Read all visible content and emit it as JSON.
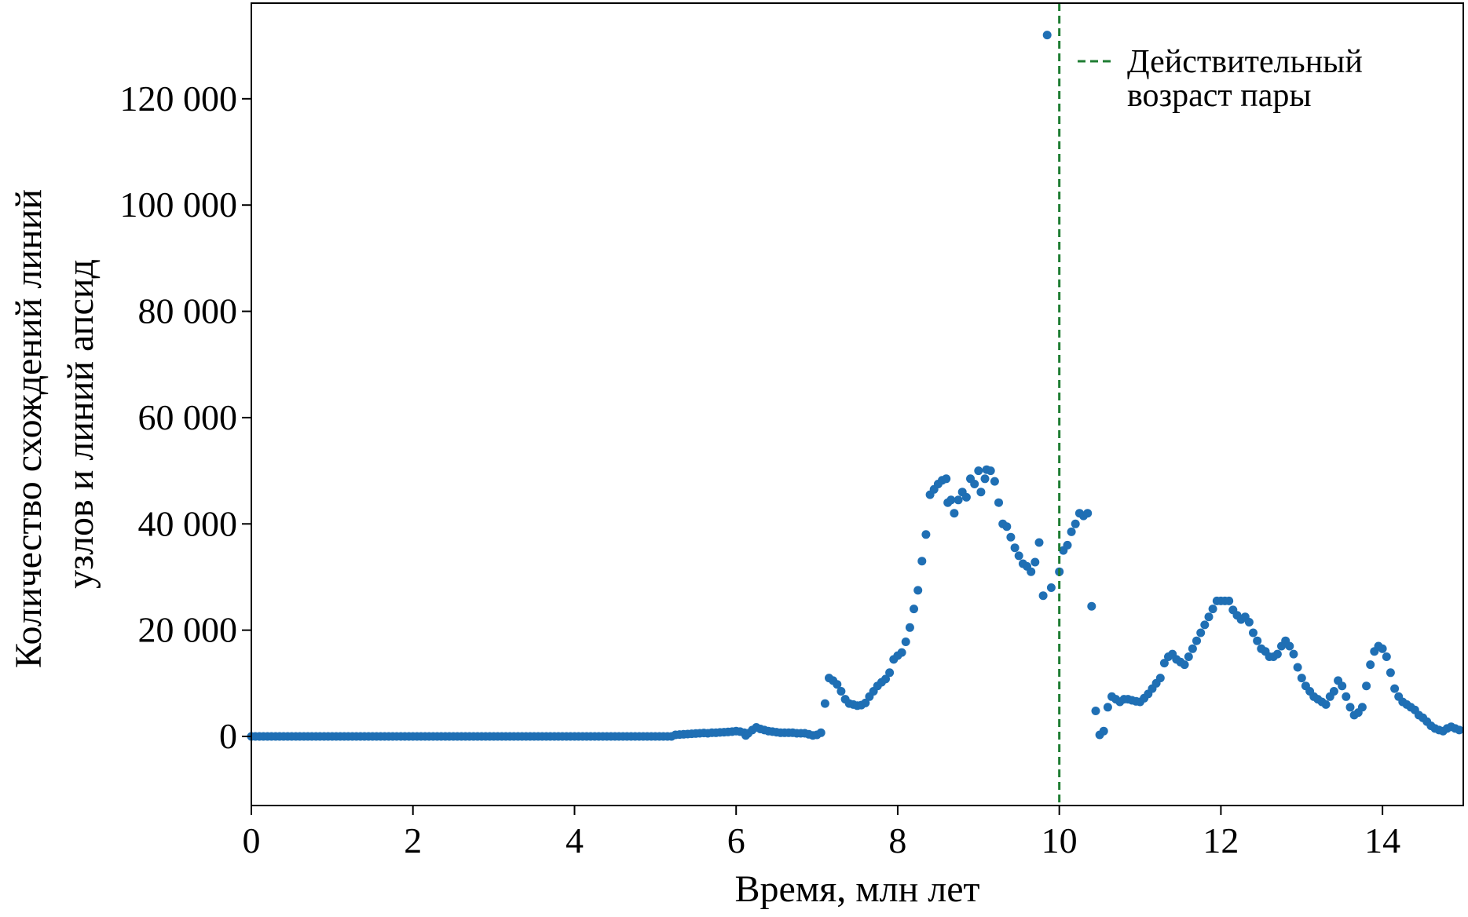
{
  "chart_data": {
    "type": "scatter",
    "title": "",
    "xlabel": "Время, млн лет",
    "ylabel_lines": [
      "Количество схождений линий",
      "узлов и линий апсид"
    ],
    "xlim": [
      0,
      15
    ],
    "ylim": [
      -13000,
      138000
    ],
    "x_ticks": [
      0,
      2,
      4,
      6,
      8,
      10,
      12,
      14
    ],
    "x_tick_labels": [
      "0",
      "2",
      "4",
      "6",
      "8",
      "10",
      "12",
      "14"
    ],
    "y_ticks": [
      0,
      20000,
      40000,
      60000,
      80000,
      100000,
      120000
    ],
    "y_tick_labels": [
      "0",
      "20 000",
      "40 000",
      "60 000",
      "80 000",
      "100 000",
      "120 000"
    ],
    "grid": false,
    "legend_position": "top-right",
    "marker_color": "#1f6fb4",
    "reference_line": {
      "x": 10,
      "color": "#1e7d32",
      "style": "dashed",
      "label_lines": [
        "Действительный",
        "возраст пары"
      ]
    },
    "flat_series": {
      "x_start": 0.0,
      "x_end": 5.2,
      "step": 0.05,
      "y": 0
    },
    "points": [
      [
        5.25,
        300
      ],
      [
        5.3,
        350
      ],
      [
        5.35,
        400
      ],
      [
        5.4,
        450
      ],
      [
        5.45,
        500
      ],
      [
        5.5,
        550
      ],
      [
        5.55,
        600
      ],
      [
        5.6,
        650
      ],
      [
        5.65,
        600
      ],
      [
        5.7,
        700
      ],
      [
        5.75,
        700
      ],
      [
        5.8,
        750
      ],
      [
        5.85,
        800
      ],
      [
        5.9,
        850
      ],
      [
        5.95,
        900
      ],
      [
        6.0,
        1000
      ],
      [
        6.05,
        900
      ],
      [
        6.1,
        700
      ],
      [
        6.12,
        200
      ],
      [
        6.15,
        600
      ],
      [
        6.2,
        1200
      ],
      [
        6.25,
        1700
      ],
      [
        6.3,
        1400
      ],
      [
        6.35,
        1200
      ],
      [
        6.4,
        1000
      ],
      [
        6.45,
        900
      ],
      [
        6.5,
        800
      ],
      [
        6.55,
        700
      ],
      [
        6.6,
        700
      ],
      [
        6.65,
        700
      ],
      [
        6.7,
        700
      ],
      [
        6.75,
        600
      ],
      [
        6.8,
        600
      ],
      [
        6.85,
        600
      ],
      [
        6.9,
        400
      ],
      [
        6.95,
        200
      ],
      [
        7.0,
        300
      ],
      [
        7.05,
        700
      ],
      [
        7.1,
        6200
      ],
      [
        7.15,
        11000
      ],
      [
        7.2,
        10500
      ],
      [
        7.25,
        9800
      ],
      [
        7.3,
        8500
      ],
      [
        7.35,
        7000
      ],
      [
        7.4,
        6200
      ],
      [
        7.45,
        6000
      ],
      [
        7.5,
        5800
      ],
      [
        7.55,
        5900
      ],
      [
        7.6,
        6300
      ],
      [
        7.65,
        7500
      ],
      [
        7.7,
        8500
      ],
      [
        7.75,
        9500
      ],
      [
        7.8,
        10200
      ],
      [
        7.85,
        10800
      ],
      [
        7.9,
        12000
      ],
      [
        7.95,
        14500
      ],
      [
        8.0,
        15200
      ],
      [
        8.05,
        15800
      ],
      [
        8.1,
        17800
      ],
      [
        8.15,
        20500
      ],
      [
        8.2,
        24000
      ],
      [
        8.25,
        27500
      ],
      [
        8.3,
        33000
      ],
      [
        8.35,
        38000
      ],
      [
        8.4,
        45500
      ],
      [
        8.45,
        46500
      ],
      [
        8.5,
        47500
      ],
      [
        8.55,
        48200
      ],
      [
        8.6,
        48500
      ],
      [
        8.62,
        44000
      ],
      [
        8.66,
        44500
      ],
      [
        8.7,
        42000
      ],
      [
        8.75,
        44500
      ],
      [
        8.8,
        46000
      ],
      [
        8.85,
        45000
      ],
      [
        8.9,
        48500
      ],
      [
        8.95,
        47500
      ],
      [
        9.0,
        50000
      ],
      [
        9.03,
        46000
      ],
      [
        9.08,
        48500
      ],
      [
        9.1,
        50200
      ],
      [
        9.15,
        50000
      ],
      [
        9.2,
        48000
      ],
      [
        9.25,
        44000
      ],
      [
        9.3,
        40000
      ],
      [
        9.35,
        39500
      ],
      [
        9.4,
        37500
      ],
      [
        9.45,
        35500
      ],
      [
        9.5,
        34000
      ],
      [
        9.55,
        32500
      ],
      [
        9.6,
        32000
      ],
      [
        9.65,
        31000
      ],
      [
        9.7,
        32800
      ],
      [
        9.75,
        36500
      ],
      [
        9.8,
        26500
      ],
      [
        9.85,
        132000
      ],
      [
        9.9,
        28000
      ],
      [
        10.0,
        31000
      ],
      [
        10.05,
        35000
      ],
      [
        10.1,
        36000
      ],
      [
        10.15,
        38500
      ],
      [
        10.2,
        40000
      ],
      [
        10.25,
        42000
      ],
      [
        10.3,
        41500
      ],
      [
        10.35,
        42000
      ],
      [
        10.4,
        24500
      ],
      [
        10.45,
        4800
      ],
      [
        10.5,
        300
      ],
      [
        10.55,
        1000
      ],
      [
        10.6,
        5500
      ],
      [
        10.65,
        7500
      ],
      [
        10.7,
        7000
      ],
      [
        10.75,
        6500
      ],
      [
        10.8,
        7000
      ],
      [
        10.85,
        7000
      ],
      [
        10.9,
        6800
      ],
      [
        10.95,
        6600
      ],
      [
        11.0,
        6500
      ],
      [
        11.05,
        7200
      ],
      [
        11.1,
        8000
      ],
      [
        11.15,
        9000
      ],
      [
        11.2,
        10000
      ],
      [
        11.25,
        11000
      ],
      [
        11.3,
        13800
      ],
      [
        11.35,
        15000
      ],
      [
        11.4,
        15500
      ],
      [
        11.45,
        14500
      ],
      [
        11.5,
        14000
      ],
      [
        11.55,
        13500
      ],
      [
        11.6,
        15000
      ],
      [
        11.65,
        16500
      ],
      [
        11.7,
        18000
      ],
      [
        11.75,
        19500
      ],
      [
        11.8,
        21000
      ],
      [
        11.85,
        22500
      ],
      [
        11.9,
        24000
      ],
      [
        11.95,
        25500
      ],
      [
        12.0,
        25500
      ],
      [
        12.05,
        25500
      ],
      [
        12.1,
        25500
      ],
      [
        12.15,
        23800
      ],
      [
        12.2,
        22800
      ],
      [
        12.25,
        22000
      ],
      [
        12.3,
        22500
      ],
      [
        12.35,
        21500
      ],
      [
        12.4,
        19500
      ],
      [
        12.45,
        18000
      ],
      [
        12.5,
        16500
      ],
      [
        12.55,
        16000
      ],
      [
        12.6,
        15000
      ],
      [
        12.65,
        15000
      ],
      [
        12.7,
        15500
      ],
      [
        12.75,
        17000
      ],
      [
        12.8,
        18000
      ],
      [
        12.85,
        17000
      ],
      [
        12.9,
        15500
      ],
      [
        12.95,
        13000
      ],
      [
        13.0,
        11000
      ],
      [
        13.05,
        9500
      ],
      [
        13.1,
        8500
      ],
      [
        13.15,
        7500
      ],
      [
        13.2,
        7000
      ],
      [
        13.25,
        6500
      ],
      [
        13.3,
        6000
      ],
      [
        13.35,
        7500
      ],
      [
        13.4,
        8500
      ],
      [
        13.45,
        10500
      ],
      [
        13.5,
        9500
      ],
      [
        13.55,
        7500
      ],
      [
        13.6,
        5500
      ],
      [
        13.65,
        4000
      ],
      [
        13.7,
        4500
      ],
      [
        13.75,
        5500
      ],
      [
        13.8,
        9500
      ],
      [
        13.85,
        13500
      ],
      [
        13.9,
        16000
      ],
      [
        13.95,
        17000
      ],
      [
        14.0,
        16500
      ],
      [
        14.05,
        15000
      ],
      [
        14.1,
        12000
      ],
      [
        14.15,
        9000
      ],
      [
        14.2,
        7500
      ],
      [
        14.25,
        6500
      ],
      [
        14.3,
        6000
      ],
      [
        14.35,
        5500
      ],
      [
        14.4,
        5000
      ],
      [
        14.45,
        4000
      ],
      [
        14.5,
        3500
      ],
      [
        14.55,
        2800
      ],
      [
        14.6,
        2000
      ],
      [
        14.65,
        1500
      ],
      [
        14.7,
        1200
      ],
      [
        14.75,
        1000
      ],
      [
        14.8,
        1500
      ],
      [
        14.85,
        1800
      ],
      [
        14.9,
        1500
      ],
      [
        14.95,
        1200
      ]
    ]
  }
}
